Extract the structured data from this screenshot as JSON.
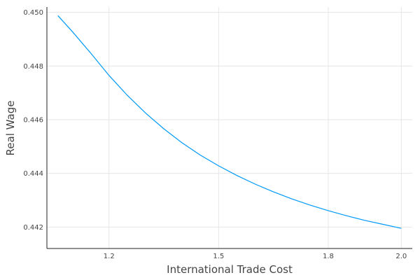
{
  "chart_data": {
    "type": "line",
    "title": "",
    "xlabel": "International Trade Cost",
    "ylabel": "Real Wage",
    "xlim": [
      1.03,
      2.03
    ],
    "ylim": [
      0.4412,
      0.4502
    ],
    "xticks": [
      1.2,
      1.5,
      1.8,
      2.0
    ],
    "xtick_labels": [
      "1.2",
      "1.5",
      "1.8",
      "2.0"
    ],
    "yticks": [
      0.442,
      0.444,
      0.446,
      0.448,
      0.45
    ],
    "ytick_labels": [
      "0.442",
      "0.444",
      "0.446",
      "0.448",
      "0.450"
    ],
    "grid": true,
    "legend": "none",
    "series": [
      {
        "color": "#009af9",
        "x": [
          1.06,
          1.1,
          1.15,
          1.2,
          1.25,
          1.3,
          1.35,
          1.4,
          1.45,
          1.5,
          1.55,
          1.6,
          1.65,
          1.7,
          1.75,
          1.8,
          1.85,
          1.9,
          1.95,
          2.0
        ],
        "y": [
          0.44988,
          0.44928,
          0.44848,
          0.44765,
          0.44691,
          0.44625,
          0.44566,
          0.44514,
          0.44468,
          0.44428,
          0.44392,
          0.4436,
          0.44331,
          0.44305,
          0.44282,
          0.44261,
          0.44242,
          0.44225,
          0.4421,
          0.44195
        ]
      }
    ]
  }
}
